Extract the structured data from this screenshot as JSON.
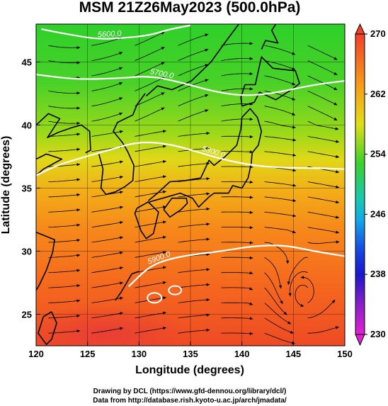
{
  "title": "MSM 21Z26May2023 (500.0hPa)",
  "xlabel": "Longitude (degrees)",
  "ylabel": "Latitude  (degrees)",
  "credits": [
    "Drawing by DCL (https://www.gfd-dennou.org/library/dcl/)",
    "Data from http://database.rish.kyoto-u.ac.jp/arch/jmadata/"
  ],
  "x_ticks": [
    "120",
    "125",
    "130",
    "135",
    "140",
    "145",
    "150"
  ],
  "y_ticks": [
    "25",
    "30",
    "35",
    "40",
    "45"
  ],
  "colorbar_ticks": [
    "270",
    "262",
    "254",
    "246",
    "238",
    "230"
  ],
  "contour_labels": [
    "5600.0",
    "5700.0",
    "5800.0",
    "5900.0"
  ],
  "chart_data": {
    "type": "heatmap",
    "title": "MSM 21Z26May2023 (500.0hPa)",
    "xlabel": "Longitude (degrees)",
    "ylabel": "Latitude  (degrees)",
    "xlim": [
      120,
      150
    ],
    "ylim": [
      22.5,
      48
    ],
    "colorbar_range": [
      230,
      270
    ],
    "colorbar_ticks": [
      270,
      262,
      254,
      246,
      238,
      230
    ],
    "contour_levels": [
      5600.0,
      5700.0,
      5800.0,
      5900.0
    ],
    "contours": [
      {
        "label": "5600.0",
        "points": [
          [
            120.5,
            47.6
          ],
          [
            123,
            47.2
          ],
          [
            126,
            46.8
          ],
          [
            128.5,
            46.9
          ],
          [
            131,
            47.1
          ],
          [
            133,
            47.6
          ],
          [
            135,
            47.9
          ]
        ]
      },
      {
        "label": "5700.0",
        "points": [
          [
            120,
            44.0
          ],
          [
            124,
            43.6
          ],
          [
            128,
            43.7
          ],
          [
            131,
            43.9
          ],
          [
            134,
            43.4
          ],
          [
            137,
            42.7
          ],
          [
            140,
            42.3
          ],
          [
            143,
            42.5
          ],
          [
            147,
            43.2
          ],
          [
            150,
            43.5
          ]
        ]
      },
      {
        "label": "5800.0",
        "points": [
          [
            120,
            36.0
          ],
          [
            122,
            36.8
          ],
          [
            124,
            37.3
          ],
          [
            127,
            38.0
          ],
          [
            130,
            38.7
          ],
          [
            133,
            38.5
          ],
          [
            136,
            37.8
          ],
          [
            138,
            37.3
          ],
          [
            141,
            36.8
          ],
          [
            144,
            36.6
          ],
          [
            147,
            36.6
          ],
          [
            150,
            36.5
          ]
        ]
      },
      {
        "label": "5900.0",
        "points": [
          [
            129,
            27.2
          ],
          [
            131,
            28.8
          ],
          [
            133,
            29.4
          ],
          [
            135,
            29.7
          ],
          [
            138,
            30.0
          ],
          [
            141,
            30.4
          ],
          [
            144,
            30.5
          ],
          [
            147,
            30.0
          ],
          [
            150,
            29.6
          ]
        ]
      }
    ],
    "temperature_field_samples": [
      {
        "lon": 125,
        "lat": 45,
        "value": 255
      },
      {
        "lon": 140,
        "lat": 45,
        "value": 256
      },
      {
        "lon": 125,
        "lat": 38,
        "value": 262
      },
      {
        "lon": 140,
        "lat": 38,
        "value": 260
      },
      {
        "lon": 125,
        "lat": 32,
        "value": 265
      },
      {
        "lon": 140,
        "lat": 32,
        "value": 265
      },
      {
        "lon": 130,
        "lat": 26,
        "value": 267
      },
      {
        "lon": 145,
        "lat": 26,
        "value": 266
      }
    ],
    "grid": true
  }
}
